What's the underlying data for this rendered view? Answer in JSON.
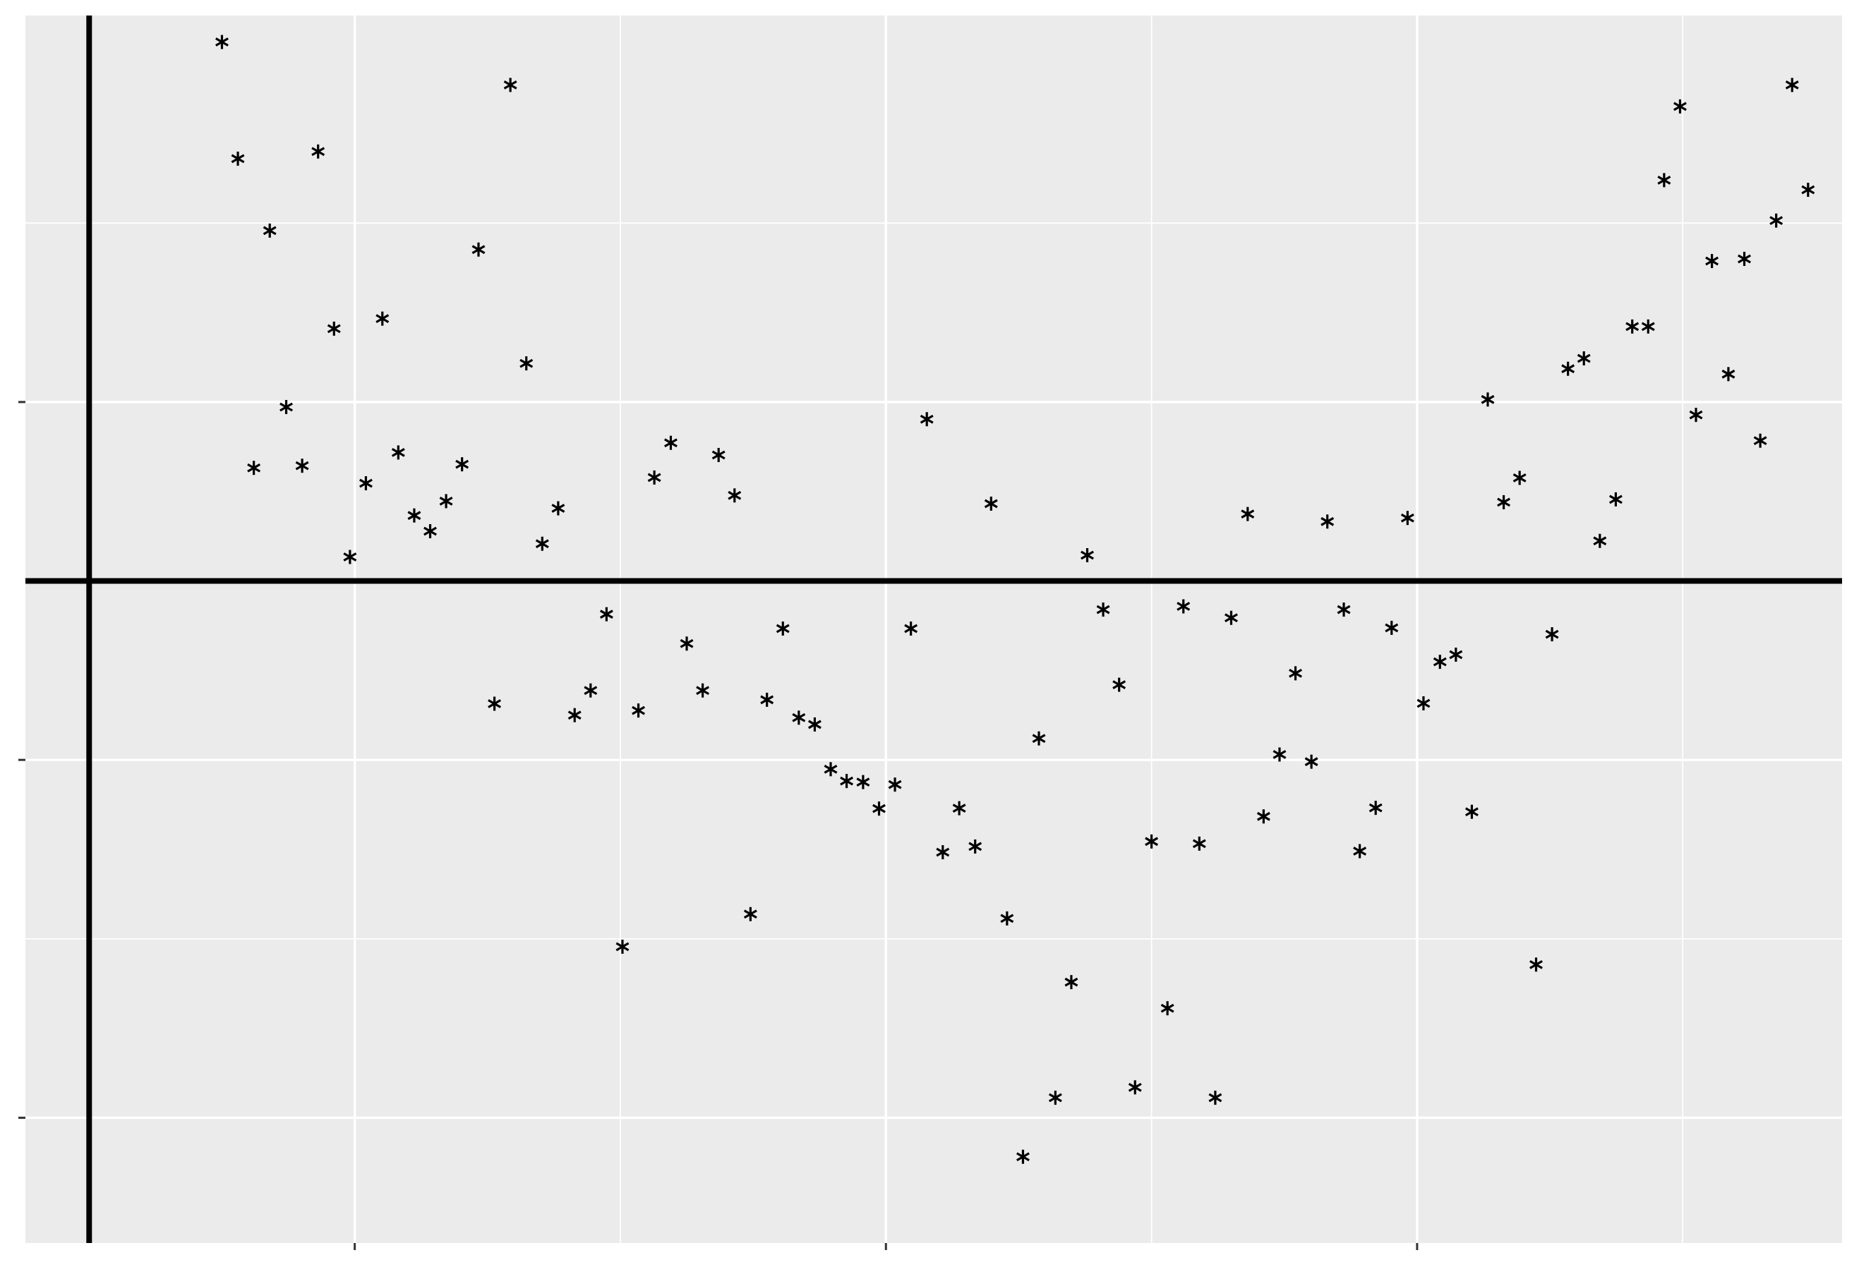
{
  "chart_data": {
    "type": "scatter",
    "title": "",
    "xlabel": "",
    "ylabel": "",
    "xlim": [
      -0.12,
      3.3
    ],
    "ylim": [
      -1.85,
      1.58
    ],
    "x_major_ticks": [
      0.5,
      1.5,
      2.5
    ],
    "y_major_ticks": [
      -1.5,
      -0.5,
      0.5
    ],
    "x_minor_ticks": [
      0,
      1,
      2,
      3
    ],
    "y_minor_ticks": [
      -1,
      0,
      1
    ],
    "tick_labels_shown": false,
    "reference_lines": {
      "vertical_x": 0,
      "horizontal_y": 0
    },
    "grid": true,
    "marker": "asterisk",
    "marker_color": "#000000",
    "panel_background": "#ebebeb",
    "points": [
      {
        "x": 0.25,
        "y": 1.506
      },
      {
        "x": 0.28,
        "y": 1.18
      },
      {
        "x": 0.31,
        "y": 0.316
      },
      {
        "x": 0.34,
        "y": 0.979
      },
      {
        "x": 0.371,
        "y": 0.486
      },
      {
        "x": 0.401,
        "y": 0.322
      },
      {
        "x": 0.431,
        "y": 1.2
      },
      {
        "x": 0.461,
        "y": 0.705
      },
      {
        "x": 0.491,
        "y": 0.067
      },
      {
        "x": 0.521,
        "y": 0.273
      },
      {
        "x": 0.552,
        "y": 0.733
      },
      {
        "x": 0.582,
        "y": 0.359
      },
      {
        "x": 0.612,
        "y": 0.183
      },
      {
        "x": 0.642,
        "y": 0.139
      },
      {
        "x": 0.672,
        "y": 0.223
      },
      {
        "x": 0.702,
        "y": 0.326
      },
      {
        "x": 0.733,
        "y": 0.926
      },
      {
        "x": 0.763,
        "y": -0.343
      },
      {
        "x": 0.793,
        "y": 1.386
      },
      {
        "x": 0.823,
        "y": 0.608
      },
      {
        "x": 0.853,
        "y": 0.104
      },
      {
        "x": 0.883,
        "y": 0.203
      },
      {
        "x": 0.914,
        "y": -0.375
      },
      {
        "x": 0.944,
        "y": -0.306
      },
      {
        "x": 0.974,
        "y": -0.093
      },
      {
        "x": 1.004,
        "y": -1.022
      },
      {
        "x": 1.034,
        "y": -0.362
      },
      {
        "x": 1.064,
        "y": 0.289
      },
      {
        "x": 1.095,
        "y": 0.386
      },
      {
        "x": 1.125,
        "y": -0.175
      },
      {
        "x": 1.155,
        "y": -0.306
      },
      {
        "x": 1.185,
        "y": 0.352
      },
      {
        "x": 1.215,
        "y": 0.239
      },
      {
        "x": 1.245,
        "y": -0.931
      },
      {
        "x": 1.276,
        "y": -0.332
      },
      {
        "x": 1.306,
        "y": -0.133
      },
      {
        "x": 1.336,
        "y": -0.382
      },
      {
        "x": 1.366,
        "y": -0.401
      },
      {
        "x": 1.396,
        "y": -0.526
      },
      {
        "x": 1.426,
        "y": -0.559
      },
      {
        "x": 1.457,
        "y": -0.562
      },
      {
        "x": 1.487,
        "y": -0.636
      },
      {
        "x": 1.517,
        "y": -0.569
      },
      {
        "x": 1.547,
        "y": -0.133
      },
      {
        "x": 1.577,
        "y": 0.452
      },
      {
        "x": 1.607,
        "y": -0.758
      },
      {
        "x": 1.638,
        "y": -0.635
      },
      {
        "x": 1.668,
        "y": -0.742
      },
      {
        "x": 1.698,
        "y": 0.216
      },
      {
        "x": 1.728,
        "y": -0.943
      },
      {
        "x": 1.758,
        "y": -1.609
      },
      {
        "x": 1.788,
        "y": -0.44
      },
      {
        "x": 1.819,
        "y": -1.444
      },
      {
        "x": 1.849,
        "y": -1.121
      },
      {
        "x": 1.879,
        "y": 0.072
      },
      {
        "x": 1.909,
        "y": -0.08
      },
      {
        "x": 1.939,
        "y": -0.29
      },
      {
        "x": 1.969,
        "y": -1.415
      },
      {
        "x": 2.0,
        "y": -0.728
      },
      {
        "x": 2.03,
        "y": -1.194
      },
      {
        "x": 2.06,
        "y": -0.071
      },
      {
        "x": 2.09,
        "y": -0.734
      },
      {
        "x": 2.12,
        "y": -1.444
      },
      {
        "x": 2.15,
        "y": -0.103
      },
      {
        "x": 2.181,
        "y": 0.187
      },
      {
        "x": 2.211,
        "y": -0.658
      },
      {
        "x": 2.241,
        "y": -0.485
      },
      {
        "x": 2.271,
        "y": -0.258
      },
      {
        "x": 2.301,
        "y": -0.505
      },
      {
        "x": 2.331,
        "y": 0.166
      },
      {
        "x": 2.362,
        "y": -0.08
      },
      {
        "x": 2.392,
        "y": -0.755
      },
      {
        "x": 2.422,
        "y": -0.634
      },
      {
        "x": 2.452,
        "y": -0.131
      },
      {
        "x": 2.482,
        "y": 0.176
      },
      {
        "x": 2.512,
        "y": -0.342
      },
      {
        "x": 2.543,
        "y": -0.226
      },
      {
        "x": 2.573,
        "y": -0.206
      },
      {
        "x": 2.603,
        "y": -0.645
      },
      {
        "x": 2.633,
        "y": 0.507
      },
      {
        "x": 2.663,
        "y": 0.22
      },
      {
        "x": 2.693,
        "y": 0.288
      },
      {
        "x": 2.724,
        "y": -1.072
      },
      {
        "x": 2.754,
        "y": -0.149
      },
      {
        "x": 2.784,
        "y": 0.593
      },
      {
        "x": 2.814,
        "y": 0.622
      },
      {
        "x": 2.844,
        "y": 0.112
      },
      {
        "x": 2.874,
        "y": 0.228
      },
      {
        "x": 2.905,
        "y": 0.711
      },
      {
        "x": 2.935,
        "y": 0.711
      },
      {
        "x": 2.965,
        "y": 1.12
      },
      {
        "x": 2.995,
        "y": 1.326
      },
      {
        "x": 3.025,
        "y": 0.464
      },
      {
        "x": 3.055,
        "y": 0.894
      },
      {
        "x": 3.086,
        "y": 0.578
      },
      {
        "x": 3.116,
        "y": 0.9
      },
      {
        "x": 3.146,
        "y": 0.392
      },
      {
        "x": 3.176,
        "y": 1.007
      },
      {
        "x": 3.206,
        "y": 1.386
      },
      {
        "x": 3.236,
        "y": 1.093
      }
    ]
  }
}
